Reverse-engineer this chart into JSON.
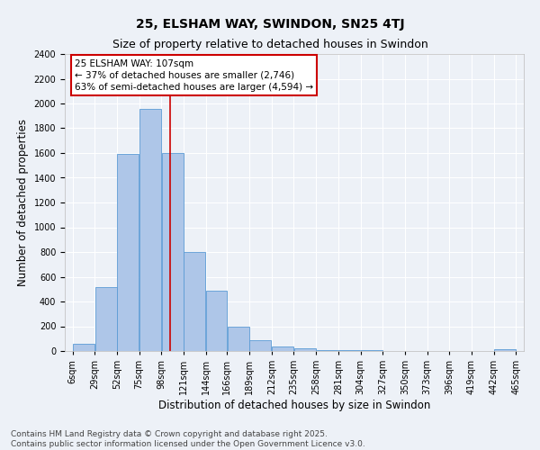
{
  "title": "25, ELSHAM WAY, SWINDON, SN25 4TJ",
  "subtitle": "Size of property relative to detached houses in Swindon",
  "xlabel": "Distribution of detached houses by size in Swindon",
  "ylabel": "Number of detached properties",
  "bin_edges": [
    6,
    29,
    52,
    75,
    98,
    121,
    144,
    166,
    189,
    212,
    235,
    258,
    281,
    304,
    327,
    350,
    373,
    396,
    419,
    442,
    465
  ],
  "bar_heights": [
    60,
    520,
    1590,
    1960,
    1600,
    800,
    490,
    200,
    85,
    40,
    25,
    10,
    5,
    5,
    2,
    0,
    0,
    0,
    0,
    15
  ],
  "bar_color": "#aec6e8",
  "bar_edge_color": "#5b9bd5",
  "vline_x": 107,
  "vline_color": "#cc0000",
  "annotation_box_color": "#cc0000",
  "annotation_text_line1": "25 ELSHAM WAY: 107sqm",
  "annotation_text_line2": "← 37% of detached houses are smaller (2,746)",
  "annotation_text_line3": "63% of semi-detached houses are larger (4,594) →",
  "ylim": [
    0,
    2400
  ],
  "yticks": [
    0,
    200,
    400,
    600,
    800,
    1000,
    1200,
    1400,
    1600,
    1800,
    2000,
    2200,
    2400
  ],
  "tick_labels": [
    "6sqm",
    "29sqm",
    "52sqm",
    "75sqm",
    "98sqm",
    "121sqm",
    "144sqm",
    "166sqm",
    "189sqm",
    "212sqm",
    "235sqm",
    "258sqm",
    "281sqm",
    "304sqm",
    "327sqm",
    "350sqm",
    "373sqm",
    "396sqm",
    "419sqm",
    "442sqm",
    "465sqm"
  ],
  "background_color": "#edf1f7",
  "footer_line1": "Contains HM Land Registry data © Crown copyright and database right 2025.",
  "footer_line2": "Contains public sector information licensed under the Open Government Licence v3.0.",
  "title_fontsize": 10,
  "subtitle_fontsize": 9,
  "xlabel_fontsize": 8.5,
  "ylabel_fontsize": 8.5,
  "tick_fontsize": 7,
  "footer_fontsize": 6.5,
  "annotation_fontsize": 7.5
}
